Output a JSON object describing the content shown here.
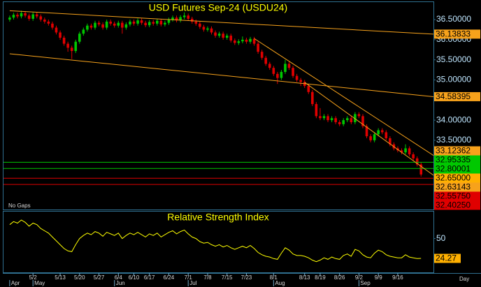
{
  "chart_data": [
    {
      "type": "candlestick",
      "title": "USD Futures Sep-24 (USDU24)",
      "note": "No Gaps",
      "x_label": "Day",
      "up_color": "#00c800",
      "down_color": "#e00000",
      "xlim": [
        -1.6,
        109.2
      ],
      "ylim": [
        31.78,
        36.9
      ],
      "yticks": [
        {
          "value": 36.5,
          "label": "36.50000"
        },
        {
          "value": 36,
          "label": "36.00000"
        },
        {
          "value": 35.5,
          "label": "35.50000"
        },
        {
          "value": 35,
          "label": "35.00000"
        },
        {
          "value": 34,
          "label": "34.00000"
        },
        {
          "value": 33.5,
          "label": "33.50000"
        }
      ],
      "xticks": [
        {
          "value": 6,
          "label": "5/2"
        },
        {
          "value": 13,
          "label": "5/13"
        },
        {
          "value": 18,
          "label": "5/20"
        },
        {
          "value": 23,
          "label": "5/27"
        },
        {
          "value": 28,
          "label": "6/4"
        },
        {
          "value": 32,
          "label": "6/10"
        },
        {
          "value": 36,
          "label": "6/17"
        },
        {
          "value": 41,
          "label": "6/24"
        },
        {
          "value": 46,
          "label": "7/1"
        },
        {
          "value": 51,
          "label": "7/8"
        },
        {
          "value": 56,
          "label": "7/15"
        },
        {
          "value": 61,
          "label": "7/23"
        },
        {
          "value": 68,
          "label": "8/1"
        },
        {
          "value": 76,
          "label": "8/13"
        },
        {
          "value": 80,
          "label": "8/19"
        },
        {
          "value": 85,
          "label": "8/26"
        },
        {
          "value": 90,
          "label": "9/2"
        },
        {
          "value": 95,
          "label": "9/9"
        },
        {
          "value": 100,
          "label": "9/16"
        }
      ],
      "month_ticks": [
        {
          "value": 0,
          "label": "Apr"
        },
        {
          "value": 6,
          "label": "May"
        },
        {
          "value": 27,
          "label": "Jun"
        },
        {
          "value": 46,
          "label": "Jul"
        },
        {
          "value": 68,
          "label": "Aug"
        },
        {
          "value": 90,
          "label": "Sep"
        }
      ],
      "open": [
        36.5,
        36.55,
        36.62,
        36.58,
        36.66,
        36.6,
        36.52,
        36.63,
        36.58,
        36.5,
        36.45,
        36.4,
        36.3,
        36.18,
        36.05,
        35.9,
        35.8,
        35.72,
        35.95,
        36.15,
        36.25,
        36.35,
        36.3,
        36.42,
        36.38,
        36.3,
        36.45,
        36.4,
        36.35,
        36.42,
        36.3,
        36.38,
        36.45,
        36.4,
        36.48,
        36.42,
        36.36,
        36.44,
        36.4,
        36.47,
        36.38,
        36.42,
        36.5,
        36.55,
        36.48,
        36.56,
        36.6,
        36.52,
        36.45,
        36.4,
        36.32,
        36.25,
        36.28,
        36.18,
        36.1,
        36.15,
        36.05,
        36.1,
        35.98,
        35.92,
        35.96,
        36.0,
        35.95,
        36.02,
        35.9,
        35.7,
        35.55,
        35.4,
        35.3,
        35.15,
        35.05,
        35.2,
        35.4,
        35.3,
        35.1,
        35.0,
        34.95,
        34.85,
        34.7,
        34.4,
        34.1,
        34.05,
        34.1,
        34.0,
        34.05,
        33.95,
        33.9,
        34.0,
        34.05,
        33.95,
        34.15,
        34.1,
        33.85,
        33.6,
        33.5,
        33.65,
        33.75,
        33.7,
        33.55,
        33.4,
        33.3,
        33.25,
        33.2,
        33.3,
        33.15,
        33.05,
        32.9
      ],
      "high": [
        36.6,
        36.67,
        36.67,
        36.72,
        36.71,
        36.65,
        36.68,
        36.68,
        36.63,
        36.55,
        36.5,
        36.45,
        36.35,
        36.23,
        36.1,
        35.95,
        35.85,
        36.0,
        36.2,
        36.3,
        36.4,
        36.4,
        36.47,
        36.47,
        36.43,
        36.5,
        36.5,
        36.45,
        36.47,
        36.47,
        36.43,
        36.5,
        36.5,
        36.53,
        36.53,
        36.47,
        36.49,
        36.49,
        36.52,
        36.52,
        36.47,
        36.55,
        36.6,
        36.6,
        36.61,
        36.68,
        36.65,
        36.57,
        36.5,
        36.45,
        36.37,
        36.33,
        36.33,
        36.23,
        36.2,
        36.2,
        36.15,
        36.15,
        36.03,
        36.01,
        36.08,
        36.05,
        36.07,
        36.07,
        35.95,
        35.75,
        35.6,
        35.45,
        35.35,
        35.2,
        35.25,
        35.5,
        35.45,
        35.35,
        35.15,
        35.05,
        35.0,
        34.9,
        34.75,
        34.45,
        34.3,
        34.15,
        34.15,
        34.1,
        34.1,
        34.0,
        34.05,
        34.1,
        34.1,
        34.2,
        34.2,
        34.15,
        33.9,
        33.65,
        33.7,
        33.8,
        33.8,
        33.75,
        33.6,
        33.45,
        33.35,
        33.3,
        33.4,
        33.35,
        33.2,
        33.1,
        32.95
      ],
      "low": [
        36.45,
        36.5,
        36.53,
        36.53,
        36.55,
        36.47,
        36.47,
        36.53,
        36.45,
        36.4,
        36.35,
        36.25,
        36.13,
        36.0,
        35.85,
        35.7,
        35.52,
        35.67,
        35.9,
        36.1,
        36.2,
        36.25,
        36.25,
        36.33,
        36.25,
        36.25,
        36.35,
        36.3,
        36.3,
        36.15,
        36.25,
        36.33,
        36.35,
        36.35,
        36.37,
        36.31,
        36.31,
        36.35,
        36.35,
        36.33,
        36.33,
        36.37,
        36.45,
        36.43,
        36.43,
        36.51,
        36.47,
        36.4,
        36.35,
        36.27,
        36.2,
        36.2,
        36.13,
        36.05,
        36.05,
        36.0,
        36.0,
        35.93,
        35.87,
        35.87,
        35.91,
        35.9,
        35.9,
        35.85,
        35.65,
        35.5,
        35.35,
        35.25,
        35.1,
        34.9,
        35.0,
        35.15,
        35.25,
        35.05,
        34.95,
        34.85,
        34.8,
        34.65,
        34.35,
        34.05,
        34.0,
        34.0,
        33.95,
        33.95,
        33.9,
        33.85,
        33.85,
        33.95,
        33.9,
        33.9,
        34.05,
        33.8,
        33.55,
        33.45,
        33.45,
        33.6,
        33.65,
        33.5,
        33.35,
        33.25,
        33.2,
        33.15,
        33.15,
        33.1,
        33.0,
        32.85,
        32.6
      ],
      "close": [
        36.55,
        36.62,
        36.58,
        36.66,
        36.6,
        36.52,
        36.63,
        36.58,
        36.5,
        36.45,
        36.4,
        36.3,
        36.18,
        36.05,
        35.9,
        35.8,
        35.72,
        35.95,
        36.15,
        36.25,
        36.35,
        36.3,
        36.42,
        36.38,
        36.3,
        36.45,
        36.4,
        36.35,
        36.42,
        36.3,
        36.38,
        36.45,
        36.4,
        36.48,
        36.42,
        36.36,
        36.44,
        36.4,
        36.47,
        36.38,
        36.42,
        36.5,
        36.55,
        36.48,
        36.56,
        36.6,
        36.52,
        36.45,
        36.4,
        36.32,
        36.25,
        36.28,
        36.18,
        36.1,
        36.15,
        36.05,
        36.1,
        35.98,
        35.92,
        35.96,
        36.0,
        35.95,
        36.02,
        35.9,
        35.7,
        35.55,
        35.4,
        35.3,
        35.15,
        35.05,
        35.2,
        35.4,
        35.3,
        35.1,
        35.0,
        34.95,
        34.85,
        34.7,
        34.4,
        34.1,
        34.05,
        34.1,
        34.0,
        34.05,
        33.95,
        33.9,
        34.0,
        34.05,
        33.95,
        34.15,
        34.1,
        33.85,
        33.6,
        33.5,
        33.65,
        33.75,
        33.7,
        33.55,
        33.4,
        33.3,
        33.25,
        33.2,
        33.3,
        33.15,
        33.05,
        32.9,
        32.65
      ],
      "levels": [
        {
          "value": 36.13833,
          "color": "#f7a21b",
          "line": "trend",
          "start": [
            0,
            36.72
          ]
        },
        {
          "value": 34.58395,
          "color": "#f7a21b",
          "line": "trend",
          "start": [
            0,
            35.65
          ]
        },
        {
          "value": 33.12362,
          "color": "#f7a21b",
          "line": "trend",
          "start": [
            63,
            36.03
          ]
        },
        {
          "value": 32.95335,
          "color": "#00c800",
          "line": "horizontal"
        },
        {
          "value": 32.80001,
          "color": "#00c800",
          "line": "horizontal"
        },
        {
          "value": 32.65,
          "label": "32.65000",
          "color": "#ffb000"
        },
        {
          "value": 32.63143,
          "color": "#f7a21b",
          "line": "trend",
          "start": [
            76,
            34.94
          ]
        },
        {
          "value": 32.5575,
          "label": "32.55750",
          "color": "#e00000",
          "line": "horizontal"
        },
        {
          "value": 32.4025,
          "label": "32.40250",
          "color": "#e00000",
          "line": "horizontal"
        }
      ]
    },
    {
      "type": "line",
      "title": "Relative Strength Index",
      "color": "#ffff00",
      "label_color": "#ffb000",
      "ylim": [
        8,
        84
      ],
      "yticks": [
        50
      ],
      "values": [
        68,
        72,
        70,
        74,
        71,
        66,
        70,
        68,
        63,
        60,
        57,
        52,
        47,
        42,
        37,
        34,
        33,
        42,
        50,
        54,
        57,
        55,
        59,
        57,
        53,
        58,
        56,
        54,
        57,
        50,
        54,
        57,
        55,
        58,
        55,
        52,
        56,
        54,
        57,
        52,
        55,
        58,
        60,
        56,
        59,
        61,
        56,
        52,
        50,
        46,
        44,
        45,
        42,
        40,
        42,
        39,
        41,
        38,
        36,
        38,
        40,
        38,
        41,
        37,
        32,
        29,
        27,
        26,
        24,
        23,
        31,
        38,
        35,
        30,
        28,
        28,
        27,
        25,
        22,
        20,
        22,
        25,
        23,
        26,
        24,
        23,
        28,
        30,
        27,
        36,
        34,
        29,
        26,
        25,
        31,
        35,
        33,
        29,
        27,
        26,
        25,
        25,
        29,
        26,
        25,
        24,
        24.27
      ]
    }
  ]
}
